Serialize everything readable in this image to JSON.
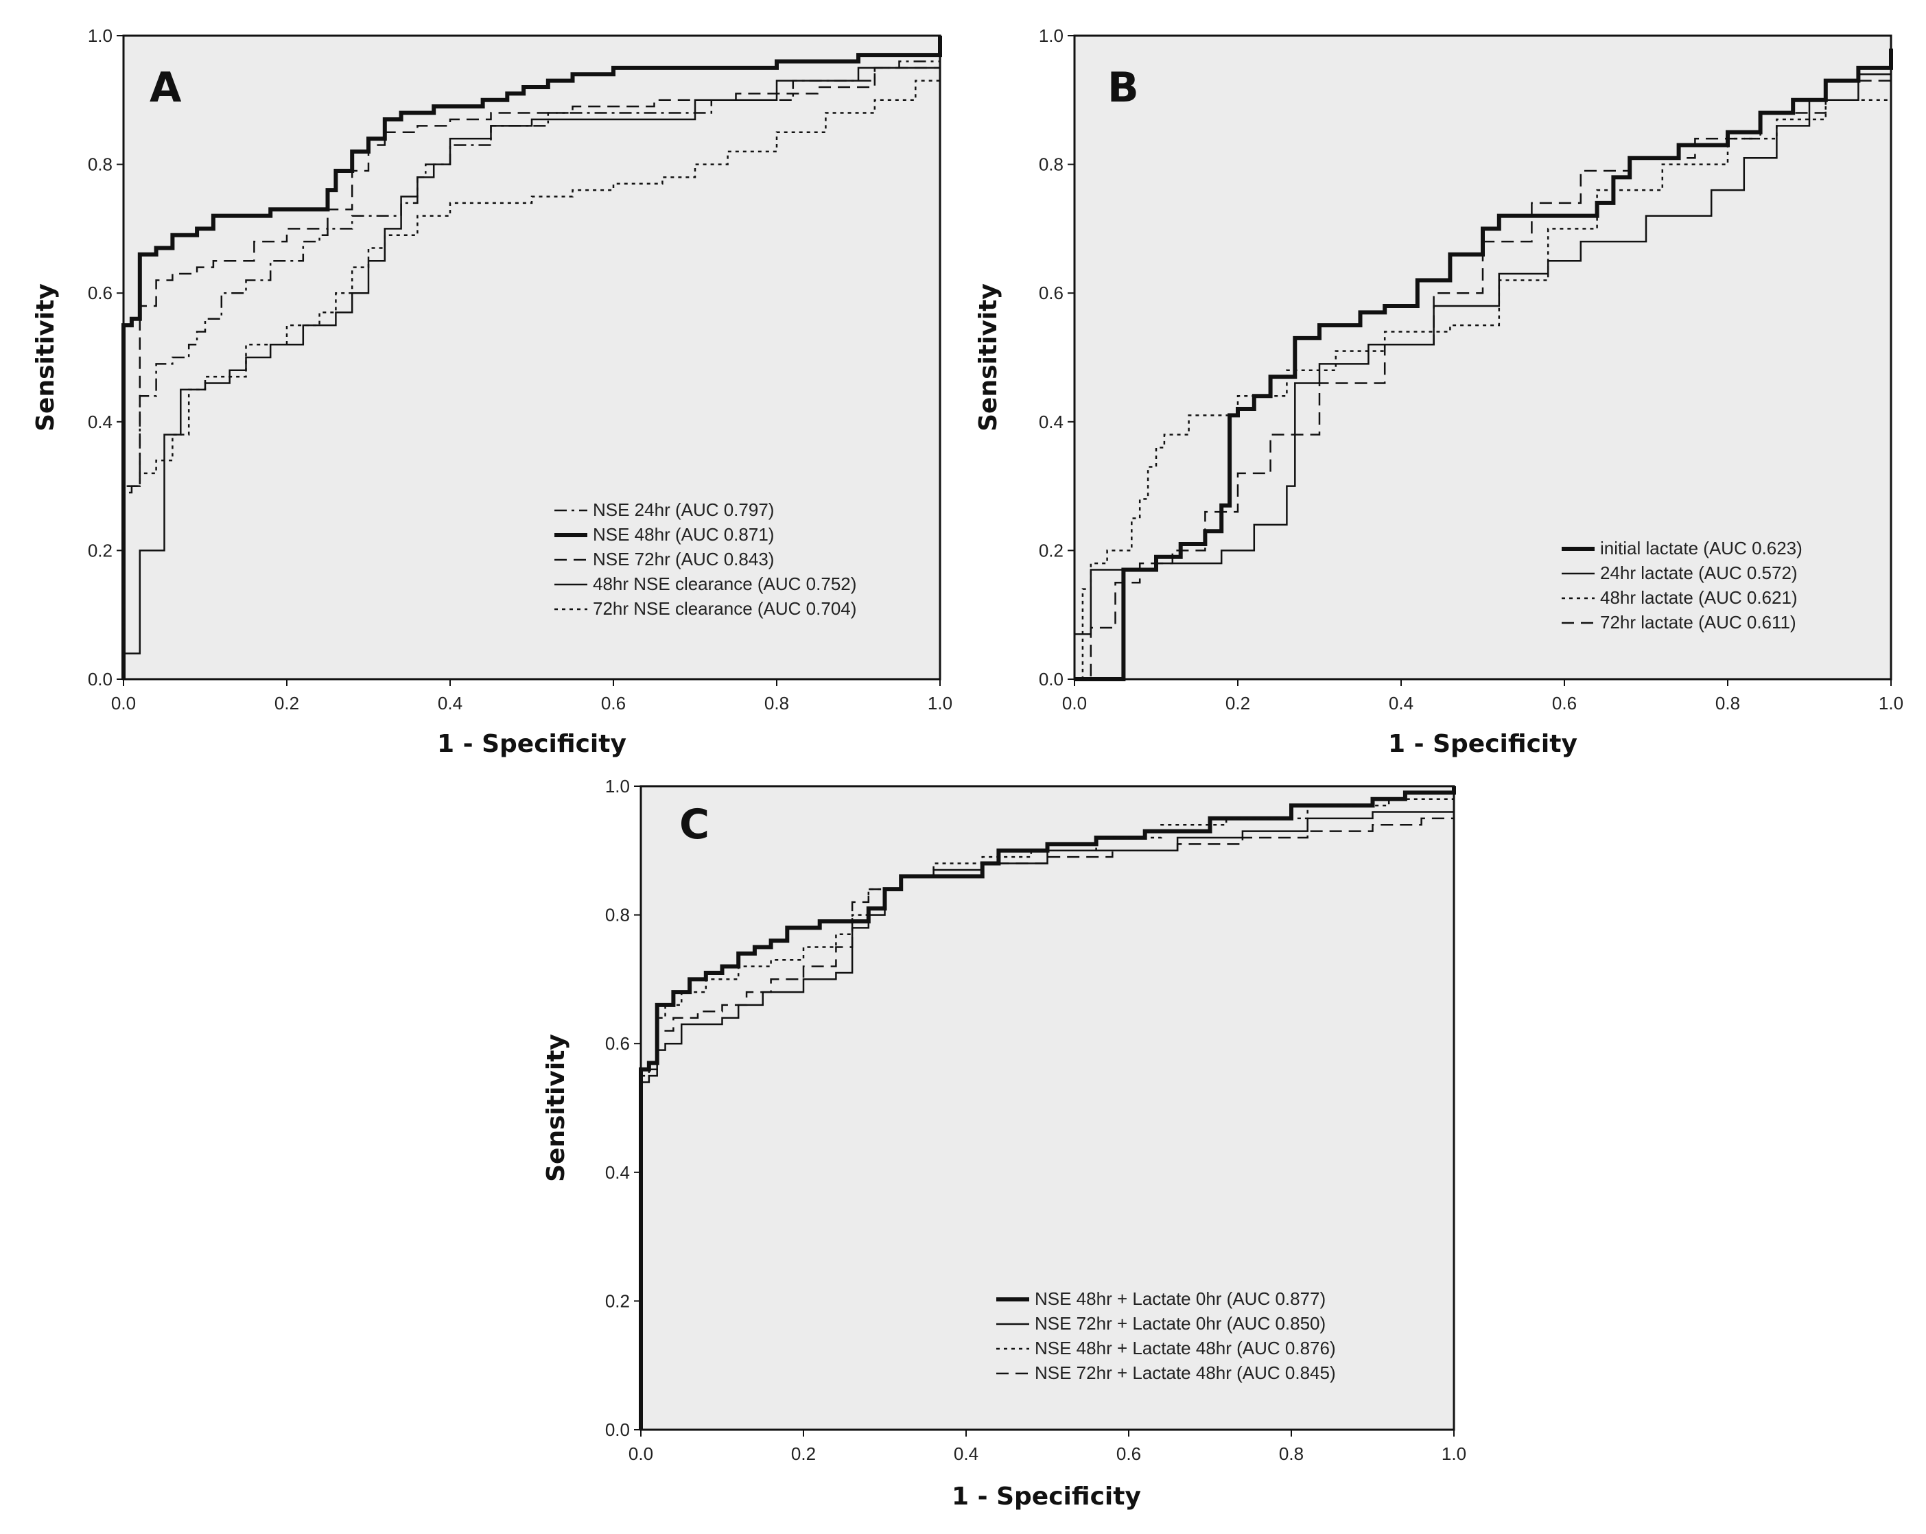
{
  "chart_data": [
    {
      "panel": "A",
      "type": "line",
      "xlabel": "1 - Specificity",
      "ylabel": "Sensitivity",
      "xlim": [
        0,
        1
      ],
      "ylim": [
        0,
        1
      ],
      "xticks": [
        "0.0",
        "0.2",
        "0.4",
        "0.6",
        "0.8",
        "1.0"
      ],
      "yticks": [
        "0.0",
        "0.2",
        "0.4",
        "0.6",
        "0.8",
        "1.0"
      ],
      "legend_position": "bottom-right",
      "series": [
        {
          "name": "NSE 24hr (AUC 0.797)",
          "style": "dashdot",
          "x": [
            0.0,
            0.0,
            0.01,
            0.02,
            0.02,
            0.04,
            0.04,
            0.06,
            0.08,
            0.09,
            0.1,
            0.12,
            0.15,
            0.18,
            0.22,
            0.24,
            0.25,
            0.28,
            0.3,
            0.34,
            0.36,
            0.37,
            0.4,
            0.45,
            0.52,
            0.62,
            0.72,
            0.82,
            0.92,
            0.95,
            1.0
          ],
          "y": [
            0.0,
            0.3,
            0.3,
            0.32,
            0.44,
            0.48,
            0.49,
            0.5,
            0.52,
            0.54,
            0.56,
            0.6,
            0.62,
            0.65,
            0.68,
            0.69,
            0.7,
            0.72,
            0.72,
            0.74,
            0.78,
            0.8,
            0.83,
            0.86,
            0.88,
            0.88,
            0.9,
            0.93,
            0.95,
            0.96,
            1.0
          ]
        },
        {
          "name": "NSE 48hr (AUC 0.871)",
          "style": "thick",
          "x": [
            0.0,
            0.0,
            0.01,
            0.02,
            0.02,
            0.04,
            0.06,
            0.09,
            0.11,
            0.18,
            0.2,
            0.25,
            0.26,
            0.28,
            0.3,
            0.32,
            0.34,
            0.38,
            0.4,
            0.44,
            0.47,
            0.49,
            0.52,
            0.55,
            0.6,
            0.7,
            0.8,
            0.9,
            1.0
          ],
          "y": [
            0.0,
            0.55,
            0.56,
            0.64,
            0.66,
            0.67,
            0.69,
            0.7,
            0.72,
            0.73,
            0.73,
            0.76,
            0.79,
            0.82,
            0.84,
            0.87,
            0.88,
            0.89,
            0.89,
            0.9,
            0.91,
            0.92,
            0.93,
            0.94,
            0.95,
            0.95,
            0.96,
            0.97,
            1.0
          ]
        },
        {
          "name": "NSE 72hr (AUC 0.843)",
          "style": "dashed",
          "x": [
            0.0,
            0.0,
            0.01,
            0.02,
            0.02,
            0.04,
            0.06,
            0.09,
            0.11,
            0.16,
            0.2,
            0.25,
            0.28,
            0.3,
            0.32,
            0.36,
            0.4,
            0.45,
            0.55,
            0.65,
            0.75,
            0.85,
            0.92,
            1.0
          ],
          "y": [
            0.0,
            0.29,
            0.3,
            0.55,
            0.58,
            0.62,
            0.63,
            0.64,
            0.65,
            0.68,
            0.7,
            0.73,
            0.79,
            0.83,
            0.85,
            0.86,
            0.87,
            0.88,
            0.89,
            0.9,
            0.91,
            0.92,
            0.95,
            1.0
          ]
        },
        {
          "name": "48hr NSE clearance (AUC 0.752)",
          "style": "solid",
          "x": [
            0.0,
            0.0,
            0.01,
            0.02,
            0.05,
            0.05,
            0.07,
            0.08,
            0.1,
            0.13,
            0.15,
            0.18,
            0.22,
            0.26,
            0.28,
            0.3,
            0.32,
            0.34,
            0.36,
            0.38,
            0.4,
            0.45,
            0.5,
            0.6,
            0.7,
            0.8,
            0.9,
            1.0
          ],
          "y": [
            0.0,
            0.04,
            0.04,
            0.2,
            0.2,
            0.38,
            0.45,
            0.45,
            0.46,
            0.48,
            0.5,
            0.52,
            0.55,
            0.57,
            0.6,
            0.65,
            0.7,
            0.75,
            0.78,
            0.8,
            0.84,
            0.86,
            0.87,
            0.87,
            0.9,
            0.93,
            0.95,
            0.99
          ]
        },
        {
          "name": "72hr NSE clearance (AUC 0.704)",
          "style": "dotted",
          "x": [
            0.0,
            0.0,
            0.02,
            0.04,
            0.06,
            0.08,
            0.1,
            0.15,
            0.2,
            0.24,
            0.26,
            0.28,
            0.3,
            0.32,
            0.36,
            0.4,
            0.45,
            0.5,
            0.55,
            0.6,
            0.66,
            0.7,
            0.74,
            0.8,
            0.86,
            0.92,
            0.97,
            1.0
          ],
          "y": [
            0.0,
            0.3,
            0.32,
            0.34,
            0.38,
            0.45,
            0.47,
            0.52,
            0.55,
            0.57,
            0.6,
            0.64,
            0.67,
            0.69,
            0.72,
            0.74,
            0.74,
            0.75,
            0.76,
            0.77,
            0.78,
            0.8,
            0.82,
            0.85,
            0.88,
            0.9,
            0.93,
            0.97
          ]
        }
      ]
    },
    {
      "panel": "B",
      "type": "line",
      "xlabel": "1 - Specificity",
      "ylabel": "Sensitivity",
      "xlim": [
        0,
        1
      ],
      "ylim": [
        0,
        1
      ],
      "xticks": [
        "0.0",
        "0.2",
        "0.4",
        "0.6",
        "0.8",
        "1.0"
      ],
      "yticks": [
        "0.0",
        "0.2",
        "0.4",
        "0.6",
        "0.8",
        "1.0"
      ],
      "legend_position": "bottom-right",
      "series": [
        {
          "name": "initial lactate (AUC 0.623)",
          "style": "thick",
          "x": [
            0.0,
            0.06,
            0.1,
            0.13,
            0.16,
            0.18,
            0.19,
            0.2,
            0.22,
            0.24,
            0.27,
            0.3,
            0.35,
            0.38,
            0.42,
            0.46,
            0.5,
            0.52,
            0.58,
            0.64,
            0.66,
            0.68,
            0.74,
            0.8,
            0.84,
            0.88,
            0.92,
            0.96,
            1.0
          ],
          "y": [
            0.0,
            0.17,
            0.19,
            0.21,
            0.23,
            0.27,
            0.41,
            0.42,
            0.44,
            0.47,
            0.53,
            0.55,
            0.57,
            0.58,
            0.62,
            0.66,
            0.7,
            0.72,
            0.72,
            0.74,
            0.78,
            0.81,
            0.83,
            0.85,
            0.88,
            0.9,
            0.93,
            0.95,
            0.98
          ]
        },
        {
          "name": "24hr lactate (AUC 0.572)",
          "style": "solid",
          "x": [
            0.0,
            0.0,
            0.02,
            0.02,
            0.1,
            0.18,
            0.22,
            0.26,
            0.27,
            0.3,
            0.36,
            0.44,
            0.52,
            0.58,
            0.62,
            0.7,
            0.78,
            0.82,
            0.86,
            0.9,
            0.96,
            1.0
          ],
          "y": [
            0.0,
            0.07,
            0.07,
            0.17,
            0.18,
            0.2,
            0.24,
            0.3,
            0.46,
            0.49,
            0.52,
            0.58,
            0.63,
            0.65,
            0.68,
            0.72,
            0.76,
            0.81,
            0.86,
            0.9,
            0.94,
            0.98
          ]
        },
        {
          "name": "48hr lactate (AUC 0.621)",
          "style": "dotted",
          "x": [
            0.0,
            0.01,
            0.02,
            0.04,
            0.07,
            0.08,
            0.09,
            0.1,
            0.11,
            0.14,
            0.2,
            0.26,
            0.32,
            0.38,
            0.46,
            0.52,
            0.58,
            0.64,
            0.72,
            0.8,
            0.86,
            0.92,
            1.0
          ],
          "y": [
            0.0,
            0.14,
            0.18,
            0.2,
            0.25,
            0.28,
            0.33,
            0.36,
            0.38,
            0.41,
            0.44,
            0.48,
            0.51,
            0.54,
            0.55,
            0.62,
            0.7,
            0.76,
            0.8,
            0.84,
            0.87,
            0.9,
            0.96
          ]
        },
        {
          "name": "72hr lactate (AUC 0.611)",
          "style": "dashed",
          "x": [
            0.0,
            0.02,
            0.05,
            0.08,
            0.12,
            0.16,
            0.2,
            0.24,
            0.3,
            0.38,
            0.44,
            0.5,
            0.56,
            0.62,
            0.68,
            0.76,
            0.84,
            0.92,
            1.0
          ],
          "y": [
            0.0,
            0.08,
            0.15,
            0.18,
            0.2,
            0.26,
            0.32,
            0.38,
            0.46,
            0.52,
            0.6,
            0.68,
            0.74,
            0.79,
            0.81,
            0.84,
            0.88,
            0.93,
            1.0
          ]
        }
      ]
    },
    {
      "panel": "C",
      "type": "line",
      "xlabel": "1 - Specificity",
      "ylabel": "Sensitivity",
      "xlim": [
        0,
        1
      ],
      "ylim": [
        0,
        1
      ],
      "xticks": [
        "0.0",
        "0.2",
        "0.4",
        "0.6",
        "0.8",
        "1.0"
      ],
      "yticks": [
        "0.0",
        "0.2",
        "0.4",
        "0.6",
        "0.8",
        "1.0"
      ],
      "legend_position": "bottom-right",
      "series": [
        {
          "name": "NSE 48hr + Lactate 0hr (AUC 0.877)",
          "style": "thick",
          "x": [
            0.0,
            0.0,
            0.01,
            0.02,
            0.02,
            0.04,
            0.06,
            0.08,
            0.1,
            0.12,
            0.14,
            0.16,
            0.18,
            0.22,
            0.26,
            0.28,
            0.3,
            0.32,
            0.34,
            0.38,
            0.42,
            0.44,
            0.5,
            0.56,
            0.62,
            0.7,
            0.8,
            0.9,
            0.94,
            1.0
          ],
          "y": [
            0.0,
            0.56,
            0.57,
            0.64,
            0.66,
            0.68,
            0.7,
            0.71,
            0.72,
            0.74,
            0.75,
            0.76,
            0.78,
            0.79,
            0.79,
            0.81,
            0.84,
            0.86,
            0.86,
            0.86,
            0.88,
            0.9,
            0.91,
            0.92,
            0.93,
            0.95,
            0.97,
            0.98,
            0.99,
            1.0
          ]
        },
        {
          "name": "NSE 72hr + Lactate 0hr (AUC 0.850)",
          "style": "solid",
          "x": [
            0.0,
            0.0,
            0.01,
            0.02,
            0.03,
            0.05,
            0.07,
            0.1,
            0.12,
            0.15,
            0.2,
            0.24,
            0.26,
            0.28,
            0.3,
            0.32,
            0.36,
            0.42,
            0.5,
            0.58,
            0.66,
            0.74,
            0.82,
            0.9,
            1.0
          ],
          "y": [
            0.0,
            0.54,
            0.55,
            0.59,
            0.6,
            0.63,
            0.63,
            0.64,
            0.66,
            0.68,
            0.7,
            0.71,
            0.78,
            0.8,
            0.84,
            0.86,
            0.87,
            0.88,
            0.9,
            0.9,
            0.92,
            0.93,
            0.95,
            0.96,
            0.98
          ]
        },
        {
          "name": "NSE 48hr + Lactate 48hr (AUC 0.876)",
          "style": "dotted",
          "x": [
            0.0,
            0.0,
            0.01,
            0.02,
            0.03,
            0.05,
            0.08,
            0.12,
            0.16,
            0.2,
            0.24,
            0.26,
            0.28,
            0.32,
            0.36,
            0.42,
            0.48,
            0.56,
            0.64,
            0.72,
            0.82,
            0.92,
            1.0
          ],
          "y": [
            0.0,
            0.56,
            0.57,
            0.64,
            0.66,
            0.68,
            0.7,
            0.72,
            0.73,
            0.75,
            0.77,
            0.8,
            0.84,
            0.86,
            0.88,
            0.89,
            0.9,
            0.92,
            0.94,
            0.95,
            0.97,
            0.98,
            0.99
          ]
        },
        {
          "name": "NSE 72hr + Lactate 48hr (AUC 0.845)",
          "style": "dashed",
          "x": [
            0.0,
            0.0,
            0.01,
            0.02,
            0.04,
            0.07,
            0.1,
            0.13,
            0.16,
            0.2,
            0.24,
            0.26,
            0.28,
            0.32,
            0.36,
            0.42,
            0.5,
            0.58,
            0.66,
            0.74,
            0.82,
            0.9,
            0.96,
            1.0
          ],
          "y": [
            0.0,
            0.55,
            0.56,
            0.62,
            0.64,
            0.65,
            0.66,
            0.68,
            0.7,
            0.72,
            0.75,
            0.82,
            0.84,
            0.86,
            0.86,
            0.88,
            0.89,
            0.9,
            0.91,
            0.92,
            0.93,
            0.94,
            0.95,
            0.97
          ]
        }
      ]
    }
  ]
}
